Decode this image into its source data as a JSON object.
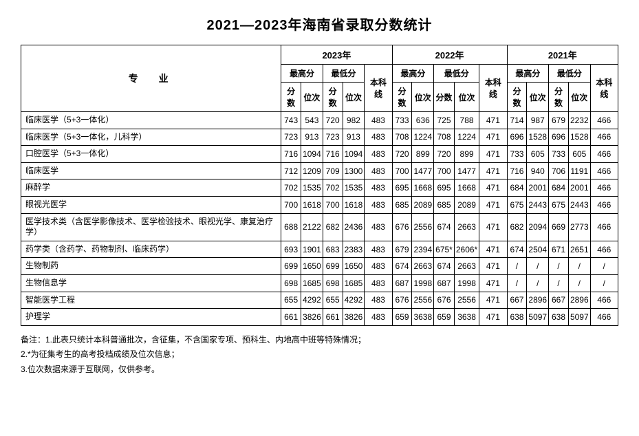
{
  "title": "2021—2023年海南省录取分数统计",
  "headers": {
    "major": "专　业",
    "years": [
      "2023年",
      "2022年",
      "2021年"
    ],
    "max": "最高分",
    "min": "最低分",
    "baseline": "本科线",
    "score": "分数",
    "rank": "位次"
  },
  "rows": [
    {
      "major": "临床医学（5+3一体化）",
      "y2023": {
        "maxS": "743",
        "maxR": "543",
        "minS": "720",
        "minR": "982",
        "base": "483"
      },
      "y2022": {
        "maxS": "733",
        "maxR": "636",
        "minS": "725",
        "minR": "788",
        "base": "471"
      },
      "y2021": {
        "maxS": "714",
        "maxR": "987",
        "minS": "679",
        "minR": "2232",
        "base": "466"
      }
    },
    {
      "major": "临床医学（5+3一体化，儿科学）",
      "y2023": {
        "maxS": "723",
        "maxR": "913",
        "minS": "723",
        "minR": "913",
        "base": "483"
      },
      "y2022": {
        "maxS": "708",
        "maxR": "1224",
        "minS": "708",
        "minR": "1224",
        "base": "471"
      },
      "y2021": {
        "maxS": "696",
        "maxR": "1528",
        "minS": "696",
        "minR": "1528",
        "base": "466"
      }
    },
    {
      "major": "口腔医学（5+3一体化）",
      "y2023": {
        "maxS": "716",
        "maxR": "1094",
        "minS": "716",
        "minR": "1094",
        "base": "483"
      },
      "y2022": {
        "maxS": "720",
        "maxR": "899",
        "minS": "720",
        "minR": "899",
        "base": "471"
      },
      "y2021": {
        "maxS": "733",
        "maxR": "605",
        "minS": "733",
        "minR": "605",
        "base": "466"
      }
    },
    {
      "major": "临床医学",
      "y2023": {
        "maxS": "712",
        "maxR": "1209",
        "minS": "709",
        "minR": "1300",
        "base": "483"
      },
      "y2022": {
        "maxS": "700",
        "maxR": "1477",
        "minS": "700",
        "minR": "1477",
        "base": "471"
      },
      "y2021": {
        "maxS": "716",
        "maxR": "940",
        "minS": "706",
        "minR": "1191",
        "base": "466"
      }
    },
    {
      "major": "麻醉学",
      "y2023": {
        "maxS": "702",
        "maxR": "1535",
        "minS": "702",
        "minR": "1535",
        "base": "483"
      },
      "y2022": {
        "maxS": "695",
        "maxR": "1668",
        "minS": "695",
        "minR": "1668",
        "base": "471"
      },
      "y2021": {
        "maxS": "684",
        "maxR": "2001",
        "minS": "684",
        "minR": "2001",
        "base": "466"
      }
    },
    {
      "major": "眼视光医学",
      "y2023": {
        "maxS": "700",
        "maxR": "1618",
        "minS": "700",
        "minR": "1618",
        "base": "483"
      },
      "y2022": {
        "maxS": "685",
        "maxR": "2089",
        "minS": "685",
        "minR": "2089",
        "base": "471"
      },
      "y2021": {
        "maxS": "675",
        "maxR": "2443",
        "minS": "675",
        "minR": "2443",
        "base": "466"
      }
    },
    {
      "major": "医学技术类（含医学影像技术、医学检验技术、眼视光学、康复治疗学）",
      "y2023": {
        "maxS": "688",
        "maxR": "2122",
        "minS": "682",
        "minR": "2436",
        "base": "483"
      },
      "y2022": {
        "maxS": "676",
        "maxR": "2556",
        "minS": "674",
        "minR": "2663",
        "base": "471"
      },
      "y2021": {
        "maxS": "682",
        "maxR": "2094",
        "minS": "669",
        "minR": "2773",
        "base": "466"
      }
    },
    {
      "major": "药学类（含药学、药物制剂、临床药学）",
      "y2023": {
        "maxS": "693",
        "maxR": "1901",
        "minS": "683",
        "minR": "2383",
        "base": "483"
      },
      "y2022": {
        "maxS": "679",
        "maxR": "2394",
        "minS": "675*",
        "minR": "2606*",
        "base": "471"
      },
      "y2021": {
        "maxS": "674",
        "maxR": "2504",
        "minS": "671",
        "minR": "2651",
        "base": "466"
      }
    },
    {
      "major": "生物制药",
      "y2023": {
        "maxS": "699",
        "maxR": "1650",
        "minS": "699",
        "minR": "1650",
        "base": "483"
      },
      "y2022": {
        "maxS": "674",
        "maxR": "2663",
        "minS": "674",
        "minR": "2663",
        "base": "471"
      },
      "y2021": {
        "maxS": "/",
        "maxR": "/",
        "minS": "/",
        "minR": "/",
        "base": "/"
      }
    },
    {
      "major": "生物信息学",
      "y2023": {
        "maxS": "698",
        "maxR": "1685",
        "minS": "698",
        "minR": "1685",
        "base": "483"
      },
      "y2022": {
        "maxS": "687",
        "maxR": "1998",
        "minS": "687",
        "minR": "1998",
        "base": "471"
      },
      "y2021": {
        "maxS": "/",
        "maxR": "/",
        "minS": "/",
        "minR": "/",
        "base": "/"
      }
    },
    {
      "major": "智能医学工程",
      "y2023": {
        "maxS": "655",
        "maxR": "4292",
        "minS": "655",
        "minR": "4292",
        "base": "483"
      },
      "y2022": {
        "maxS": "676",
        "maxR": "2556",
        "minS": "676",
        "minR": "2556",
        "base": "471"
      },
      "y2021": {
        "maxS": "667",
        "maxR": "2896",
        "minS": "667",
        "minR": "2896",
        "base": "466"
      }
    },
    {
      "major": "护理学",
      "y2023": {
        "maxS": "661",
        "maxR": "3826",
        "minS": "661",
        "minR": "3826",
        "base": "483"
      },
      "y2022": {
        "maxS": "659",
        "maxR": "3638",
        "minS": "659",
        "minR": "3638",
        "base": "471"
      },
      "y2021": {
        "maxS": "638",
        "maxR": "5097",
        "minS": "638",
        "minR": "5097",
        "base": "466"
      }
    }
  ],
  "notes": [
    "备注：1.此表只统计本科普通批次，含征集，不含国家专项、预科生、内地高中班等特殊情况；",
    "2.*为征集考生的高考投档成绩及位次信息；",
    "3.位次数据来源于互联网，仅供参考。"
  ],
  "colors": {
    "border": "#000000",
    "text": "#000000",
    "background": "#ffffff"
  },
  "font": {
    "title_size": 20,
    "cell_size": 12,
    "notes_size": 12
  }
}
